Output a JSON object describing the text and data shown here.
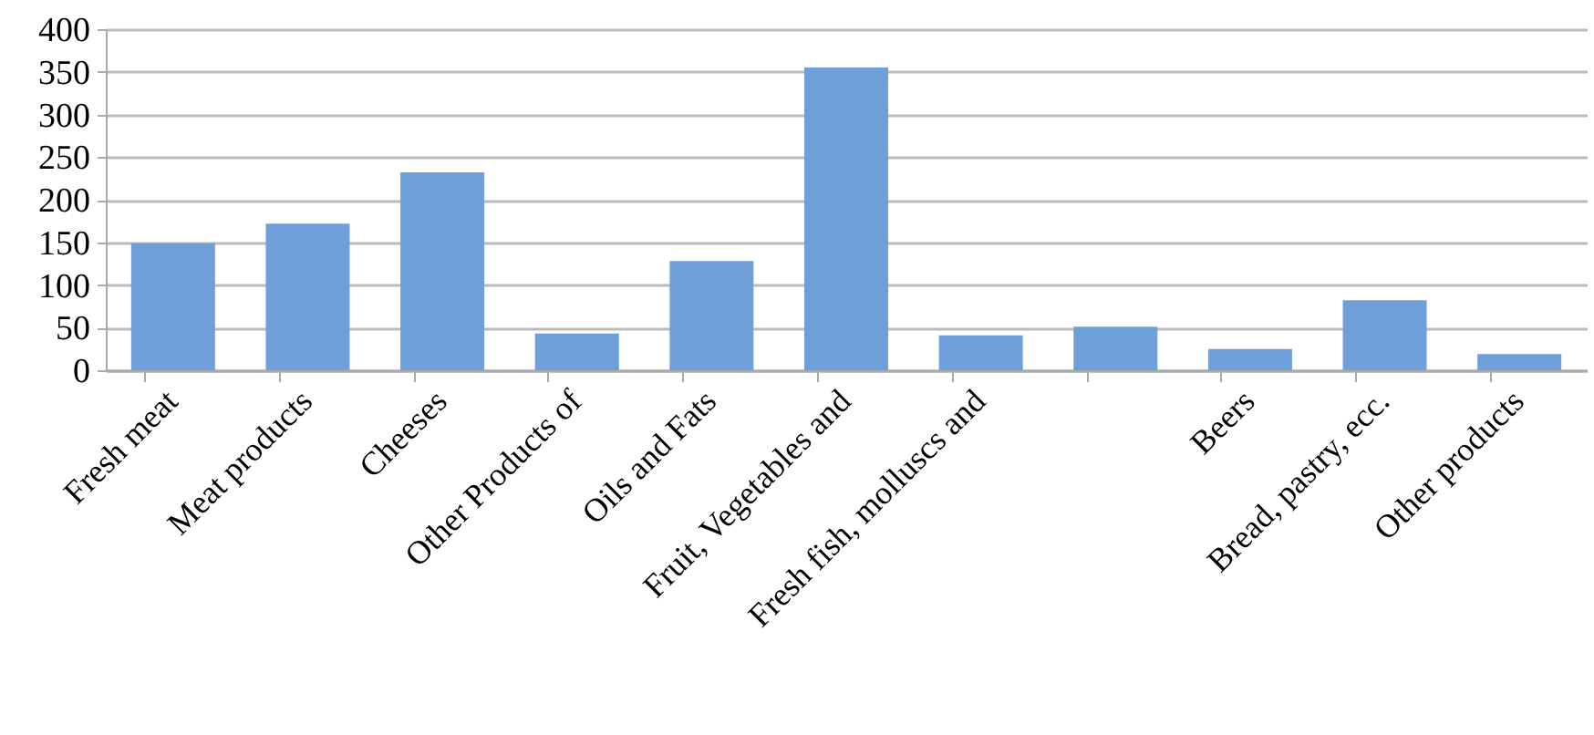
{
  "chart_data": {
    "type": "bar",
    "categories": [
      "Fresh meat",
      "Meat products",
      "Cheeses",
      "Other Products of",
      "Oils and Fats",
      "Fruit, Vegetables and",
      "Fresh fish, molluscs and",
      null,
      "Beers",
      "Bread, pastry, ecc.",
      "Other products"
    ],
    "values": [
      149,
      172,
      232,
      43,
      128,
      355,
      41,
      51,
      25,
      82,
      19
    ],
    "color": "#6f9fd8",
    "ylim": [
      0,
      400
    ],
    "yticks": [
      0,
      50,
      100,
      150,
      200,
      250,
      300,
      350,
      400
    ],
    "grid": "y"
  }
}
